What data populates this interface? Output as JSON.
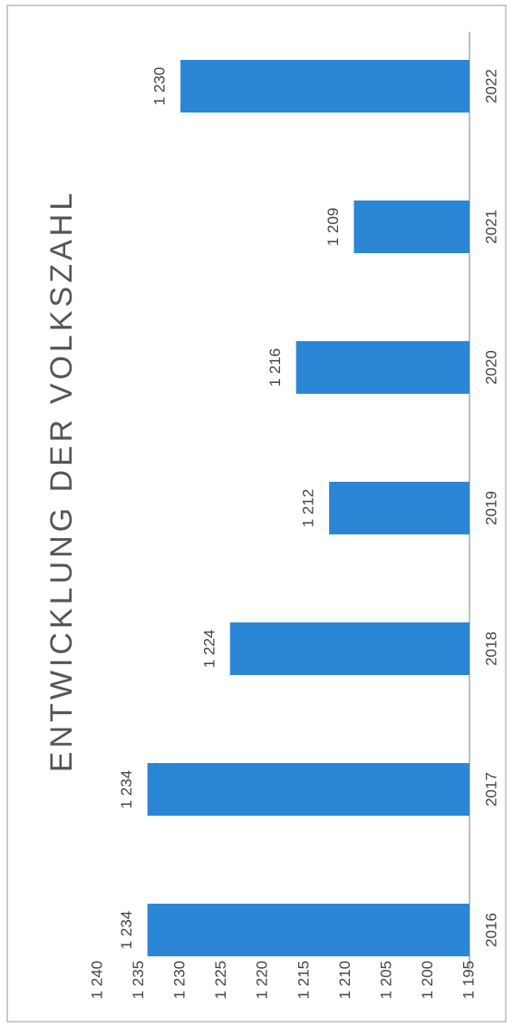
{
  "chart_data": {
    "type": "bar",
    "title": "ENTWICKLUNG DER VOLKSZAHL",
    "categories": [
      "2016",
      "2017",
      "2018",
      "2019",
      "2020",
      "2021",
      "2022"
    ],
    "values": [
      1234,
      1234,
      1224,
      1212,
      1216,
      1209,
      1230
    ],
    "value_labels": [
      "1 234",
      "1 234",
      "1 224",
      "1 212",
      "1 216",
      "1 209",
      "1 230"
    ],
    "color": "#2b87d6",
    "ylim": [
      1195,
      1240
    ],
    "yticks": [
      {
        "value": 1195,
        "label": "1 195"
      },
      {
        "value": 1200,
        "label": "1 200"
      },
      {
        "value": 1205,
        "label": "1 205"
      },
      {
        "value": 1210,
        "label": "1 210"
      },
      {
        "value": 1215,
        "label": "1 215"
      },
      {
        "value": 1220,
        "label": "1 220"
      },
      {
        "value": 1225,
        "label": "1 225"
      },
      {
        "value": 1230,
        "label": "1 230"
      },
      {
        "value": 1235,
        "label": "1 235"
      },
      {
        "value": 1240,
        "label": "1 240"
      }
    ],
    "grid": false
  }
}
